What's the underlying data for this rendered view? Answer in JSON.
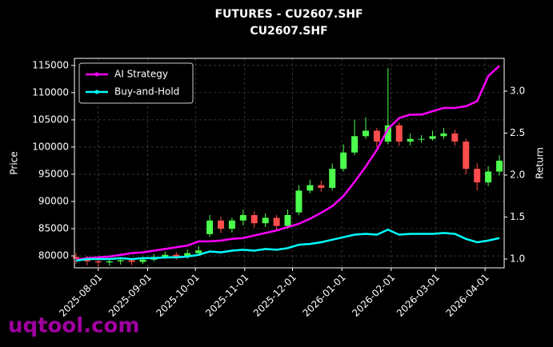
{
  "chart_data": {
    "type": "candlestick",
    "title": "FUTURES - CU2607.SHF",
    "subtitle": "CU2607.SHF",
    "ylabel": "Price",
    "y2label": "Return",
    "watermark": "uqtool.com",
    "x": [
      "2025-07-18",
      "2025-07-25",
      "2025-08-01",
      "2025-08-08",
      "2025-08-15",
      "2025-08-22",
      "2025-08-29",
      "2025-09-05",
      "2025-09-12",
      "2025-09-19",
      "2025-09-26",
      "2025-10-03",
      "2025-10-10",
      "2025-10-17",
      "2025-10-24",
      "2025-10-31",
      "2025-11-07",
      "2025-11-14",
      "2025-11-21",
      "2025-11-28",
      "2025-12-05",
      "2025-12-12",
      "2025-12-19",
      "2025-12-26",
      "2026-01-02",
      "2026-01-09",
      "2026-01-16",
      "2026-01-23",
      "2026-01-30",
      "2026-02-06",
      "2026-02-13",
      "2026-02-20",
      "2026-02-27",
      "2026-03-06",
      "2026-03-13",
      "2026-03-20",
      "2026-03-27",
      "2026-04-03",
      "2026-04-10"
    ],
    "open": [
      79800,
      79500,
      79000,
      78800,
      79000,
      79200,
      78900,
      79300,
      79800,
      80200,
      79800,
      80500,
      84000,
      86500,
      85000,
      86500,
      87500,
      86000,
      87000,
      85500,
      88000,
      92000,
      93000,
      92500,
      96000,
      99000,
      102000,
      103000,
      101000,
      104000,
      101000,
      101500,
      101500,
      102000,
      102500,
      101000,
      96000,
      93500,
      95500
    ],
    "high": [
      80500,
      80000,
      79800,
      79500,
      79800,
      79600,
      79800,
      80300,
      80800,
      80700,
      81200,
      81800,
      87500,
      87200,
      87000,
      88500,
      88200,
      87800,
      87500,
      88500,
      93000,
      94000,
      93800,
      97000,
      100500,
      105000,
      105500,
      103500,
      114500,
      104500,
      102500,
      102200,
      103000,
      103500,
      103200,
      101500,
      97000,
      96500,
      98500
    ],
    "low": [
      78500,
      78300,
      78000,
      78200,
      78400,
      78300,
      78500,
      79000,
      79400,
      79300,
      79500,
      80200,
      83500,
      84200,
      84300,
      85600,
      85200,
      85300,
      84800,
      85000,
      87500,
      91500,
      91800,
      92000,
      95500,
      98500,
      101500,
      100000,
      100500,
      100200,
      100300,
      100800,
      101200,
      101500,
      100300,
      95000,
      92000,
      92800,
      94800
    ],
    "close": [
      79500,
      79000,
      78800,
      79000,
      79200,
      78900,
      79300,
      79800,
      80200,
      79800,
      80500,
      81000,
      86500,
      85000,
      86500,
      87500,
      86000,
      87000,
      85500,
      87500,
      92000,
      93000,
      92500,
      96000,
      99000,
      102000,
      103000,
      101000,
      104000,
      101000,
      101500,
      101500,
      102000,
      102500,
      101000,
      96000,
      93500,
      95500,
      97500
    ],
    "up_color": "#4cff4c",
    "down_color": "#ff4c4c",
    "series": [
      {
        "name": "AI Strategy",
        "color": "#ff00ff",
        "axis": "y2",
        "values": [
          0.99,
          1.01,
          1.02,
          1.03,
          1.05,
          1.07,
          1.08,
          1.1,
          1.12,
          1.14,
          1.16,
          1.21,
          1.21,
          1.22,
          1.24,
          1.25,
          1.28,
          1.31,
          1.34,
          1.38,
          1.42,
          1.48,
          1.55,
          1.63,
          1.75,
          1.92,
          2.1,
          2.3,
          2.55,
          2.68,
          2.72,
          2.72,
          2.76,
          2.8,
          2.8,
          2.82,
          2.88,
          3.18,
          3.3
        ]
      },
      {
        "name": "Buy-and-Hold",
        "color": "#00ffff",
        "axis": "y2",
        "values": [
          0.98,
          1.0,
          1.0,
          1.0,
          1.01,
          1.0,
          1.01,
          1.01,
          1.02,
          1.02,
          1.03,
          1.05,
          1.09,
          1.08,
          1.1,
          1.11,
          1.1,
          1.12,
          1.11,
          1.13,
          1.17,
          1.18,
          1.2,
          1.23,
          1.26,
          1.29,
          1.3,
          1.29,
          1.35,
          1.29,
          1.3,
          1.3,
          1.3,
          1.31,
          1.3,
          1.24,
          1.2,
          1.22,
          1.25
        ]
      }
    ],
    "xlim": [
      "2025-07-17",
      "2026-04-13"
    ],
    "xticks": [
      "2025-08-01",
      "2025-09-01",
      "2025-10-01",
      "2025-11-01",
      "2025-12-01",
      "2026-01-01",
      "2026-02-01",
      "2026-03-01",
      "2026-04-01"
    ],
    "ylim": [
      77800,
      116300
    ],
    "yticks": [
      80000,
      85000,
      90000,
      95000,
      100000,
      105000,
      110000,
      115000
    ],
    "y2lim": [
      0.895,
      3.39
    ],
    "y2ticks": [
      {
        "value": 1,
        "label": "1.0"
      },
      1.5,
      {
        "value": 2,
        "label": "2.0"
      },
      2.5,
      {
        "value": 3,
        "label": "3.0"
      }
    ],
    "grid": true,
    "legend": "upper left"
  }
}
